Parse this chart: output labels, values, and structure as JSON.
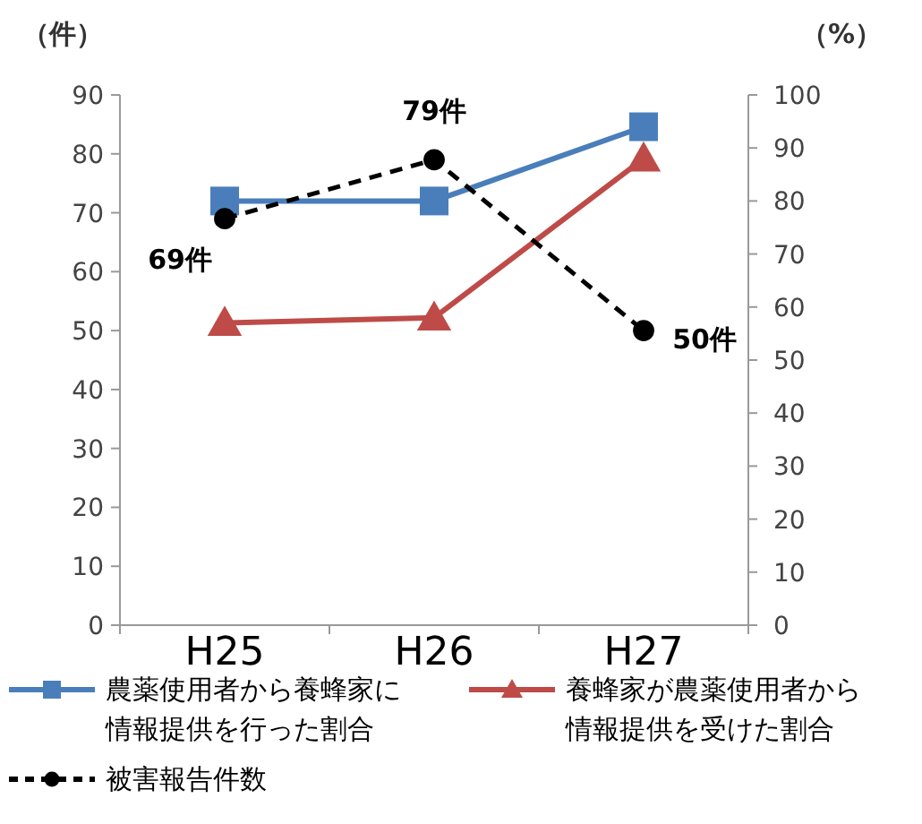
{
  "chart_data": {
    "type": "line",
    "categories": [
      "H25",
      "H26",
      "H27"
    ],
    "ylabel": "（件）",
    "y2label": "（%）",
    "ylim": [
      0,
      90
    ],
    "yticks": [
      0,
      10,
      20,
      30,
      40,
      50,
      60,
      70,
      80,
      90
    ],
    "y2lim": [
      0,
      100
    ],
    "y2ticks": [
      0,
      10,
      20,
      30,
      40,
      50,
      60,
      70,
      80,
      90,
      100
    ],
    "grid": false,
    "legend": "bottom",
    "series": [
      {
        "name": "農薬使用者から養蜂家に情報提供を行った割合",
        "color": "#4a7ebb",
        "axis": "y2",
        "marker": "square",
        "line_style": "solid",
        "values": [
          80,
          80,
          94
        ]
      },
      {
        "name": "養蜂家が農薬使用者から情報提供を受けた割合",
        "color": "#be4b48",
        "axis": "y2",
        "marker": "triangle",
        "line_style": "solid",
        "values": [
          57,
          58,
          88
        ]
      },
      {
        "name": "被害報告件数",
        "color": "#000000",
        "axis": "y",
        "marker": "circle",
        "line_style": "dashed",
        "values": [
          69,
          79,
          50
        ],
        "value_labels": [
          "69件",
          "79件",
          "50件"
        ]
      }
    ]
  }
}
